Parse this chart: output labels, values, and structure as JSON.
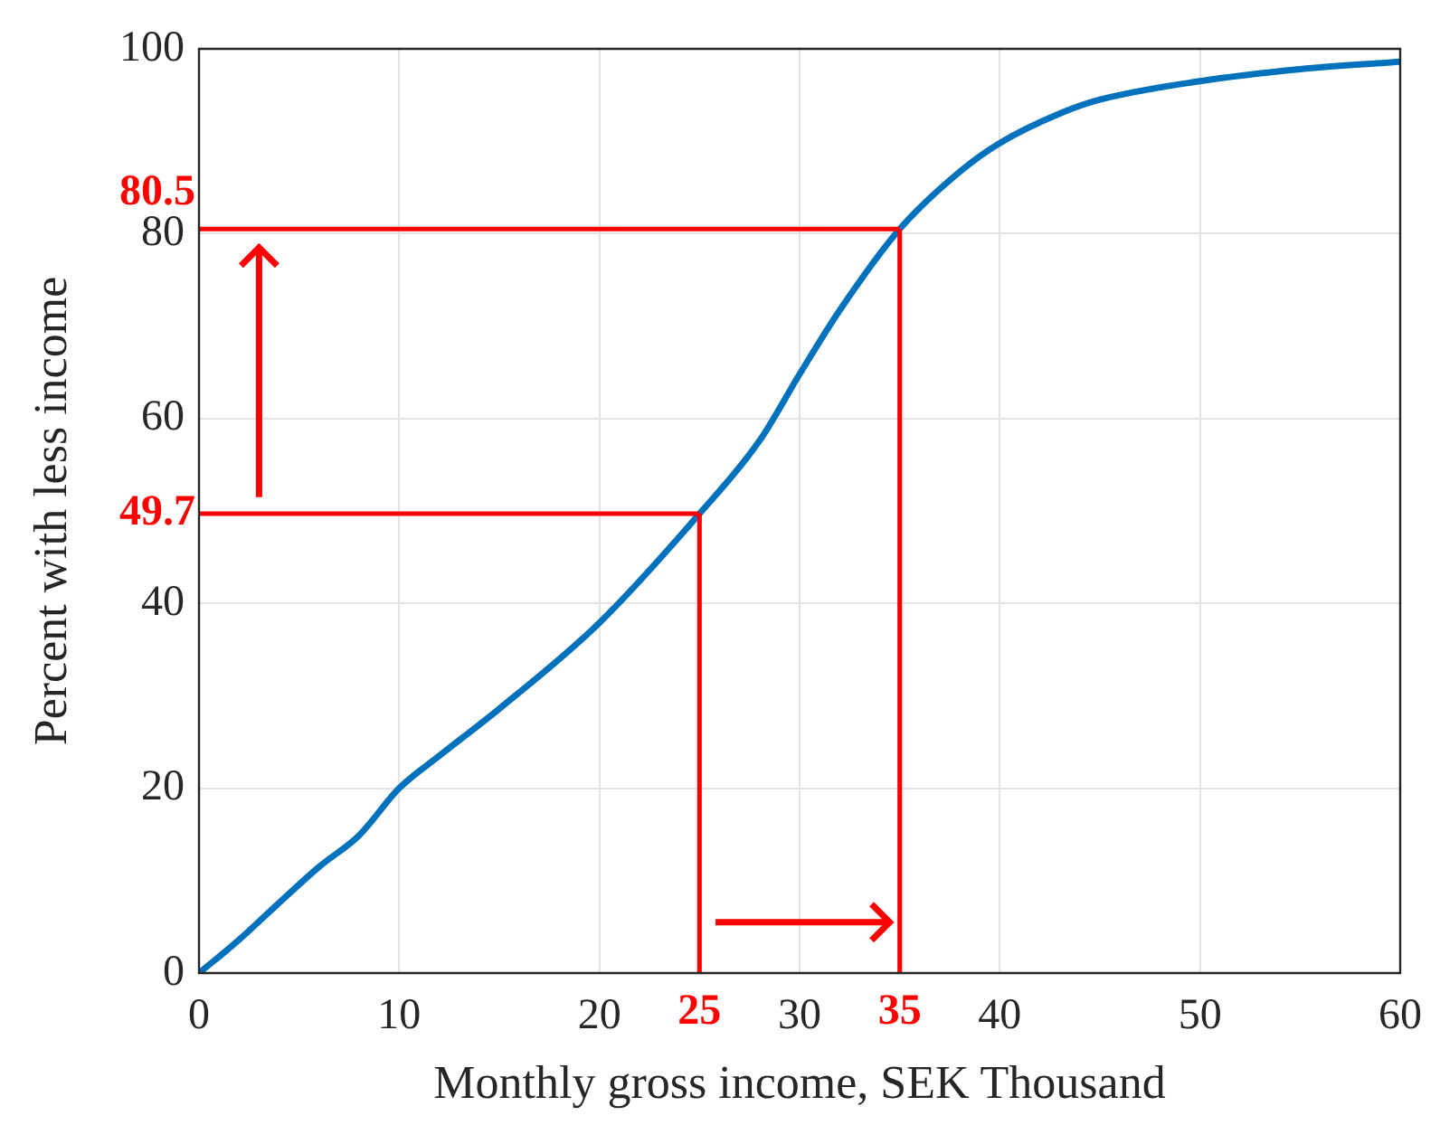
{
  "chart_data": {
    "type": "line",
    "xlabel": "Monthly gross income, SEK Thousand",
    "ylabel": "Percent with less income",
    "x": [
      0,
      2,
      4,
      6,
      8,
      10,
      12,
      15,
      20,
      25,
      28,
      30,
      32,
      35,
      38,
      40,
      43,
      45,
      50,
      55,
      60
    ],
    "series": [
      {
        "color": "#0072bd",
        "values": [
          0,
          3.6,
          7.6,
          11.5,
          14.9,
          20,
          23.5,
          28.6,
          37.9,
          49.7,
          57.6,
          64.8,
          71.7,
          80.5,
          86.7,
          89.8,
          93,
          94.5,
          96.5,
          97.8,
          98.6
        ]
      }
    ],
    "xlim": [
      0,
      60
    ],
    "xticks": [
      0,
      10,
      20,
      30,
      40,
      50,
      60
    ],
    "ylim": [
      0,
      100
    ],
    "yticks": [
      0,
      20,
      40,
      60,
      80,
      100
    ],
    "ref_lines": [
      {
        "axis": "x",
        "value": 25,
        "label": "25",
        "color": "#ff0000"
      },
      {
        "axis": "x",
        "value": 35,
        "label": "35",
        "color": "#ff0000"
      },
      {
        "axis": "y",
        "value": 49.7,
        "label": "49.7",
        "color": "#ff0000"
      },
      {
        "axis": "y",
        "value": 80.5,
        "label": "80.5",
        "color": "#ff0000"
      }
    ],
    "grid": true,
    "legend": false,
    "marker": "none",
    "line_style": "solid"
  }
}
